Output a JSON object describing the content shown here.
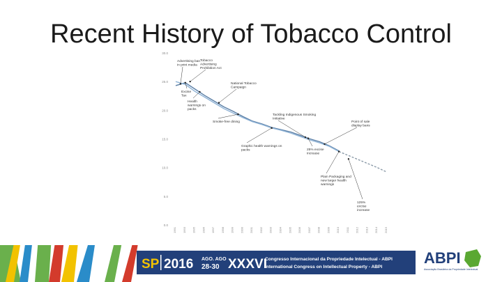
{
  "slide": {
    "title": "Recent History of Tobacco Control"
  },
  "chart_data": {
    "type": "line",
    "title": "",
    "xlabel": "",
    "ylabel": "",
    "y_ticks": [
      "30.0",
      "25.0",
      "20.0",
      "15.0",
      "10.0",
      "5.0",
      "0.0"
    ],
    "ylim": [
      0,
      30
    ],
    "x_ticks": [
      "1991",
      "1993",
      "1995",
      "1996",
      "1997",
      "1998",
      "1999",
      "2000",
      "2001",
      "2002",
      "2003",
      "2004",
      "2005",
      "2006",
      "2007",
      "2008",
      "2009",
      "2010",
      "2011",
      "2012",
      "2013",
      "2014",
      "2015"
    ],
    "grid": false,
    "series": [
      {
        "name": "",
        "style": "solid",
        "x": [
          0,
          1,
          2,
          3,
          4,
          5,
          6,
          7,
          8,
          9,
          10,
          11,
          12,
          13,
          14,
          15,
          16,
          17
        ],
        "y": [
          24.3,
          24.8,
          23.7,
          22.6,
          21.6,
          20.6,
          19.8,
          18.9,
          18.1,
          17.6,
          17.0,
          16.6,
          16.2,
          15.6,
          15.0,
          14.5,
          13.8,
          12.9
        ]
      },
      {
        "name": "",
        "style": "solid",
        "x": [
          0,
          1,
          2,
          3,
          4,
          5,
          6,
          7,
          8,
          9,
          10,
          11,
          12,
          13,
          14,
          15,
          16,
          17
        ],
        "y": [
          25.0,
          24.5,
          23.3,
          22.3,
          21.3,
          20.3,
          19.5,
          18.7,
          18.0,
          17.5,
          16.9,
          16.5,
          16.0,
          15.4,
          14.8,
          14.3,
          13.7,
          12.8
        ]
      },
      {
        "name": "",
        "style": "dashed",
        "x": [
          17,
          18,
          19,
          20,
          21,
          22
        ],
        "y": [
          12.8,
          12.1,
          11.4,
          10.7,
          10.0,
          9.2
        ]
      }
    ],
    "annotations": [
      {
        "lines": [
          "Advertising ban",
          "in print media"
        ],
        "x": 0.5,
        "y": 24.6
      },
      {
        "lines": [
          "Tobacco",
          "Advertising",
          "Prohibition Act"
        ],
        "x": 1.5,
        "y": 25.0
      },
      {
        "lines": [
          "Excise",
          "Tax"
        ],
        "x": 1.0,
        "y": 24.8
      },
      {
        "lines": [
          "Health",
          "warnings on",
          "packs"
        ],
        "x": 2.5,
        "y": 23.2
      },
      {
        "lines": [
          "National Tobacco",
          "Campaign"
        ],
        "x": 4.5,
        "y": 21.3
      },
      {
        "lines": [
          "Smoke-free dining"
        ],
        "x": 6.5,
        "y": 19.3
      },
      {
        "lines": [
          "Tackling Indigenous Smoking",
          "Initiative"
        ],
        "x": 13.5,
        "y": 15.3
      },
      {
        "lines": [
          "Point of sale",
          "display bans"
        ],
        "x": 15.5,
        "y": 14.1
      },
      {
        "lines": [
          "Graphic health warnings on",
          "packs"
        ],
        "x": 10.0,
        "y": 16.9
      },
      {
        "lines": [
          "25% excise",
          "increase"
        ],
        "x": 13.8,
        "y": 15.1
      },
      {
        "lines": [
          "Plain Packaging and",
          "new larger health",
          "warnings"
        ],
        "x": 17.0,
        "y": 12.8
      },
      {
        "lines": [
          "125%",
          "excise",
          "increase"
        ],
        "x": 18.0,
        "y": 11.5
      }
    ]
  },
  "footer": {
    "sp_label": "SP",
    "year": "2016",
    "month_line": "AGO. AGO",
    "days_line": "28-30",
    "edition": "XXXVI",
    "line1": "Congresso Internacional da Propriedade Intelectual - ABPI",
    "line2": "International Congress on Intellectual Property - ABPI",
    "logo": "ABPI",
    "logo_tagline": "Associação Brasileira da Propriedade Intelectual",
    "colors": {
      "bar": "#22407a",
      "accent": "#5aa832",
      "green_art": "#6ab04c",
      "red_art": "#d33b2c",
      "yellow_art": "#f2c200",
      "blue_art": "#2a8cc9"
    }
  }
}
